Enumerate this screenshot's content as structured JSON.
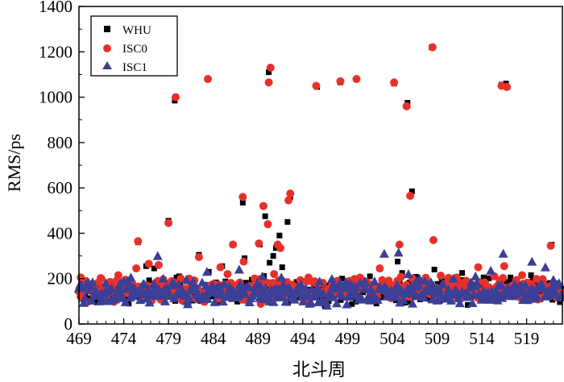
{
  "chart_data": {
    "type": "scatter",
    "title": "",
    "xlabel": "北斗周",
    "ylabel": "RMS/ps",
    "xlim": [
      469,
      523
    ],
    "ylim": [
      0,
      1400
    ],
    "x_ticks": [
      469,
      474,
      479,
      484,
      489,
      494,
      499,
      504,
      509,
      514,
      519
    ],
    "y_ticks": [
      0,
      200,
      400,
      600,
      800,
      1000,
      1200,
      1400
    ],
    "legend_position": "top-left",
    "series": [
      {
        "name": "WHU",
        "marker": "square",
        "color": "#000000",
        "outliers": [
          [
            471.0,
            95
          ],
          [
            475.6,
            360
          ],
          [
            476.5,
            255
          ],
          [
            477.4,
            245
          ],
          [
            479.0,
            455
          ],
          [
            479.7,
            985
          ],
          [
            479.9,
            205
          ],
          [
            480.2,
            210
          ],
          [
            482.4,
            305
          ],
          [
            483.5,
            230
          ],
          [
            485.0,
            255
          ],
          [
            486.2,
            350
          ],
          [
            487.3,
            535
          ],
          [
            487.5,
            290
          ],
          [
            488.3,
            195
          ],
          [
            489.2,
            350
          ],
          [
            489.8,
            475
          ],
          [
            490.2,
            1110
          ],
          [
            490.3,
            270
          ],
          [
            490.7,
            300
          ],
          [
            491.0,
            335
          ],
          [
            491.4,
            390
          ],
          [
            491.7,
            250
          ],
          [
            492.3,
            450
          ],
          [
            492.6,
            560
          ],
          [
            495.6,
            1045
          ],
          [
            498.2,
            1065
          ],
          [
            500.0,
            1080
          ],
          [
            501.5,
            210
          ],
          [
            504.2,
            1060
          ],
          [
            504.6,
            275
          ],
          [
            505.1,
            225
          ],
          [
            505.7,
            975
          ],
          [
            506.2,
            585
          ],
          [
            508.4,
            1220
          ],
          [
            508.7,
            240
          ],
          [
            509.5,
            205
          ],
          [
            511.8,
            225
          ],
          [
            514.2,
            205
          ],
          [
            516.2,
            1055
          ],
          [
            516.7,
            1060
          ],
          [
            517.2,
            205
          ],
          [
            519.5,
            215
          ],
          [
            521.8,
            350
          ]
        ],
        "baseline_mean": 145,
        "baseline_spread": 40
      },
      {
        "name": "ISC0",
        "marker": "circle",
        "color": "#e8302a",
        "outliers": [
          [
            469.2,
            205
          ],
          [
            471.5,
            200
          ],
          [
            473.4,
            215
          ],
          [
            474.2,
            195
          ],
          [
            475.4,
            245
          ],
          [
            475.6,
            365
          ],
          [
            476.8,
            265
          ],
          [
            477.9,
            260
          ],
          [
            479.0,
            445
          ],
          [
            479.8,
            1000
          ],
          [
            481.3,
            200
          ],
          [
            482.4,
            295
          ],
          [
            483.4,
            1080
          ],
          [
            484.8,
            250
          ],
          [
            485.6,
            220
          ],
          [
            486.2,
            350
          ],
          [
            487.3,
            560
          ],
          [
            487.4,
            275
          ],
          [
            489.1,
            355
          ],
          [
            489.6,
            520
          ],
          [
            490.1,
            440
          ],
          [
            490.2,
            1065
          ],
          [
            490.4,
            1130
          ],
          [
            490.8,
            220
          ],
          [
            491.2,
            350
          ],
          [
            491.5,
            335
          ],
          [
            492.4,
            545
          ],
          [
            492.6,
            575
          ],
          [
            495.5,
            1050
          ],
          [
            498.2,
            1070
          ],
          [
            500.0,
            1080
          ],
          [
            502.6,
            245
          ],
          [
            504.2,
            1065
          ],
          [
            504.8,
            350
          ],
          [
            505.6,
            960
          ],
          [
            506.0,
            565
          ],
          [
            508.5,
            1220
          ],
          [
            508.6,
            370
          ],
          [
            511.2,
            205
          ],
          [
            513.6,
            250
          ],
          [
            515.4,
            210
          ],
          [
            516.2,
            1050
          ],
          [
            516.5,
            255
          ],
          [
            516.8,
            1045
          ],
          [
            518.5,
            215
          ],
          [
            521.7,
            345
          ]
        ],
        "baseline_mean": 150,
        "baseline_spread": 42
      },
      {
        "name": "ISC1",
        "marker": "triangle",
        "color": "#3b3f96",
        "outliers": [
          [
            469.8,
            175
          ],
          [
            472.0,
            180
          ],
          [
            474.8,
            205
          ],
          [
            477.8,
            300
          ],
          [
            478.4,
            200
          ],
          [
            481.0,
            195
          ],
          [
            483.3,
            230
          ],
          [
            486.9,
            240
          ],
          [
            489.5,
            210
          ],
          [
            491.6,
            205
          ],
          [
            493.8,
            175
          ],
          [
            497.4,
            170
          ],
          [
            501.0,
            185
          ],
          [
            503.1,
            310
          ],
          [
            504.7,
            315
          ],
          [
            505.8,
            220
          ],
          [
            506.7,
            190
          ],
          [
            508.3,
            185
          ],
          [
            510.8,
            200
          ],
          [
            513.3,
            210
          ],
          [
            515.0,
            235
          ],
          [
            516.4,
            310
          ],
          [
            519.6,
            275
          ],
          [
            521.1,
            250
          ],
          [
            522.0,
            195
          ]
        ],
        "baseline_mean": 140,
        "baseline_spread": 40
      }
    ],
    "x_step": 0.14
  }
}
